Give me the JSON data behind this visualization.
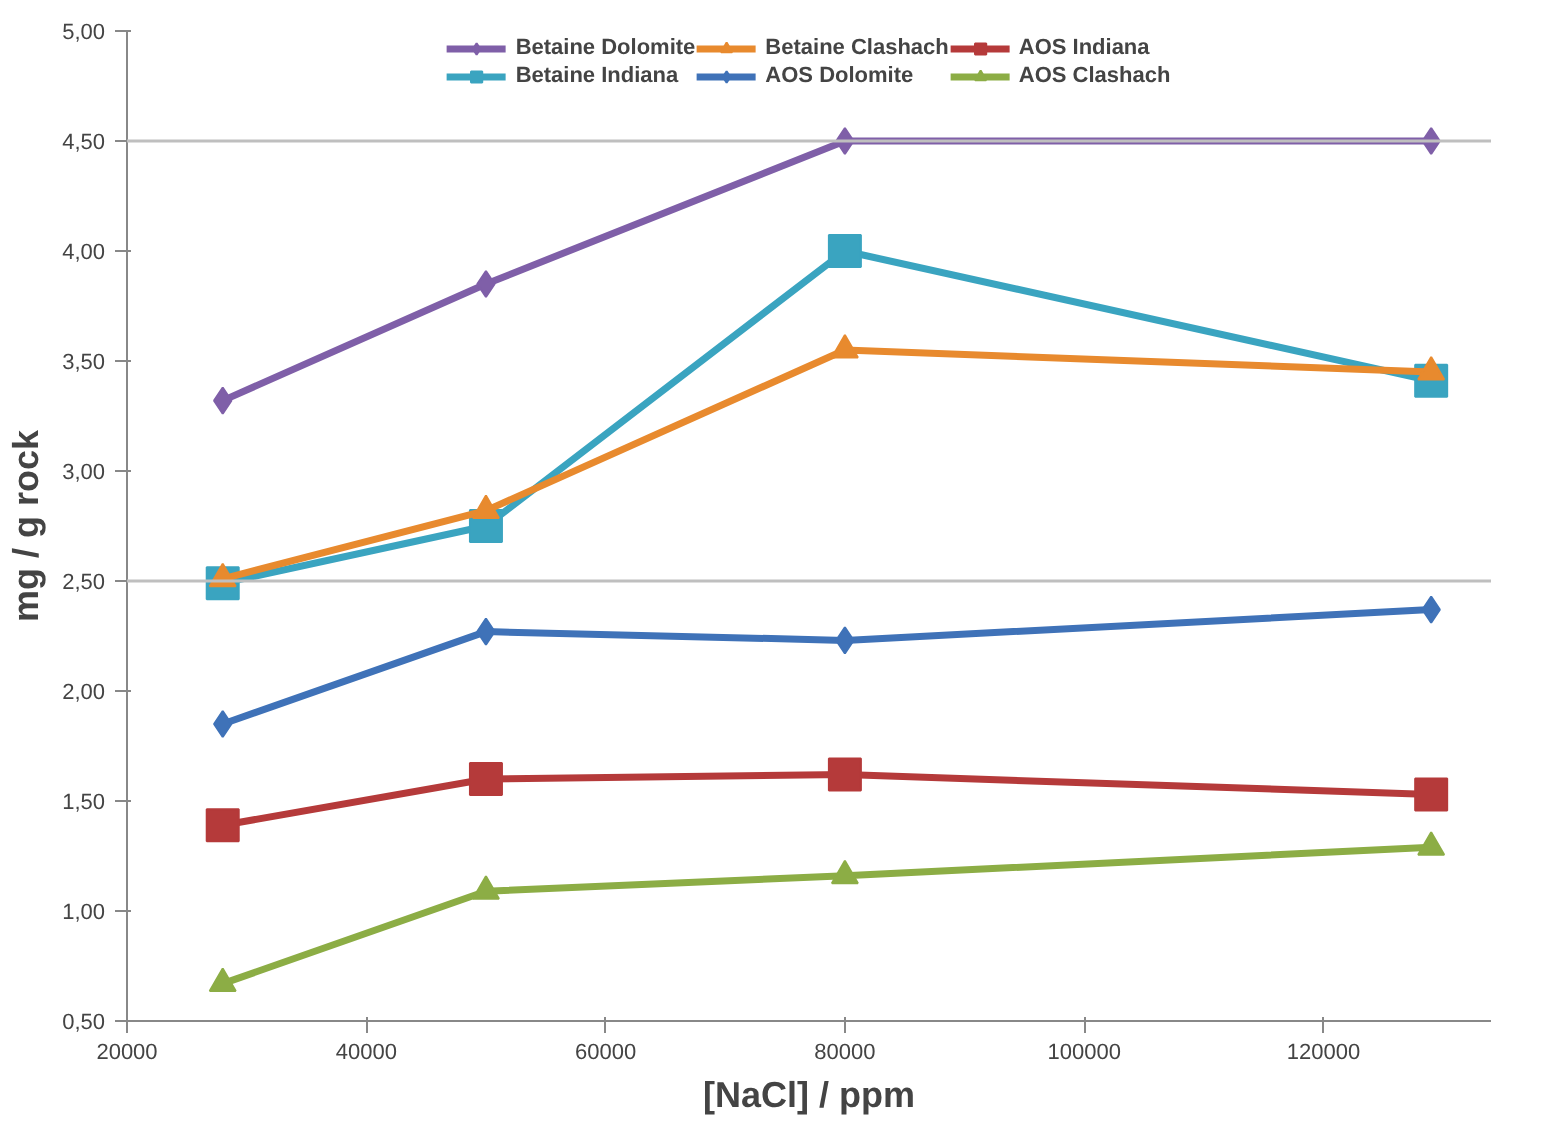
{
  "chart_data": {
    "type": "line",
    "xlabel": "[NaCl] / ppm",
    "ylabel": "mg / g rock",
    "x": [
      28000,
      50000,
      80000,
      129000
    ],
    "series": [
      {
        "name": "Betaine Dolomite",
        "color": "#7f5fa8",
        "marker": "diamond",
        "values": [
          3.32,
          3.85,
          4.5,
          4.5
        ]
      },
      {
        "name": "Betaine Indiana",
        "color": "#3aa4c0",
        "marker": "square",
        "values": [
          2.49,
          2.75,
          4.0,
          3.41
        ]
      },
      {
        "name": "Betaine Clashach",
        "color": "#e88a2e",
        "marker": "triangle",
        "values": [
          2.51,
          2.82,
          3.55,
          3.45
        ]
      },
      {
        "name": "AOS Dolomite",
        "color": "#3f72b8",
        "marker": "diamond",
        "values": [
          1.85,
          2.27,
          2.23,
          2.37
        ]
      },
      {
        "name": "AOS Indiana",
        "color": "#b53a3a",
        "marker": "square",
        "values": [
          1.39,
          1.6,
          1.62,
          1.53
        ]
      },
      {
        "name": "AOS Clashach",
        "color": "#8cad45",
        "marker": "triangle",
        "values": [
          0.67,
          1.09,
          1.16,
          1.29
        ]
      }
    ],
    "xlim": [
      20000,
      134000
    ],
    "xticks": [
      20000,
      40000,
      60000,
      80000,
      100000,
      120000
    ],
    "ylim": [
      0.5,
      5.0
    ],
    "yticks": [
      {
        "value": 0.5,
        "label": "0,50"
      },
      {
        "value": 1.0,
        "label": "1,00"
      },
      {
        "value": 1.5,
        "label": "1,50"
      },
      {
        "value": 2.0,
        "label": "2,00"
      },
      {
        "value": 2.5,
        "label": "2,50"
      },
      {
        "value": 3.0,
        "label": "3,00"
      },
      {
        "value": 3.5,
        "label": "3,50"
      },
      {
        "value": 4.0,
        "label": "4,00"
      },
      {
        "value": 4.5,
        "label": "4,50"
      },
      {
        "value": 5.0,
        "label": "5,00"
      }
    ],
    "ref_lines": [
      {
        "axis": "y",
        "value": 2.5,
        "color": "#bfbfbf"
      },
      {
        "axis": "y",
        "value": 4.5,
        "color": "#bfbfbf"
      }
    ],
    "legend": "top",
    "grid": false,
    "line_style": "solid"
  }
}
